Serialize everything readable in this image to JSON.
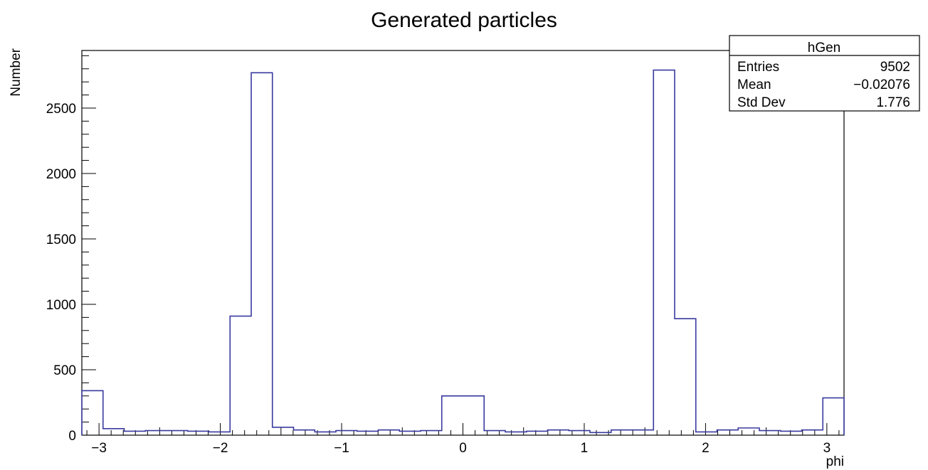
{
  "chart_data": {
    "type": "histogram",
    "title": "Generated particles",
    "xlabel": "phi",
    "ylabel": "Number",
    "xlim": [
      -3.1416,
      3.1416
    ],
    "ylim": [
      0,
      2940
    ],
    "x_ticks": [
      -3,
      -2,
      -1,
      0,
      1,
      2,
      3
    ],
    "x_tick_labels": [
      "−3",
      "−2",
      "−1",
      "0",
      "1",
      "2",
      "3"
    ],
    "y_ticks": [
      0,
      500,
      1000,
      1500,
      2000,
      2500
    ],
    "y_tick_labels": [
      "0",
      "500",
      "1000",
      "1500",
      "2000",
      "2500"
    ],
    "grid": false,
    "line_color": "#3a3aa0",
    "bin_edges": [
      -3.1416,
      -2.967,
      -2.7925,
      -2.618,
      -2.4435,
      -2.2689,
      -2.0944,
      -1.9199,
      -1.7453,
      -1.5708,
      -1.3963,
      -1.2217,
      -1.0472,
      -0.8727,
      -0.6981,
      -0.5236,
      -0.3491,
      -0.1745,
      0.0,
      0.1745,
      0.3491,
      0.5236,
      0.6981,
      0.8727,
      1.0472,
      1.2217,
      1.3963,
      1.5708,
      1.7453,
      1.9199,
      2.0944,
      2.2689,
      2.4435,
      2.618,
      2.7925,
      2.967,
      3.1416
    ],
    "values": [
      340,
      50,
      30,
      35,
      35,
      30,
      25,
      910,
      2770,
      60,
      40,
      25,
      35,
      30,
      40,
      30,
      35,
      300,
      300,
      35,
      25,
      30,
      40,
      35,
      20,
      40,
      40,
      2790,
      890,
      25,
      40,
      55,
      35,
      30,
      40,
      285
    ],
    "stats_box": {
      "name": "hGen",
      "rows": [
        {
          "label": "Entries",
          "value": "9502"
        },
        {
          "label": "Mean",
          "value": "−0.02076"
        },
        {
          "label": "Std Dev",
          "value": "1.776"
        }
      ]
    }
  }
}
